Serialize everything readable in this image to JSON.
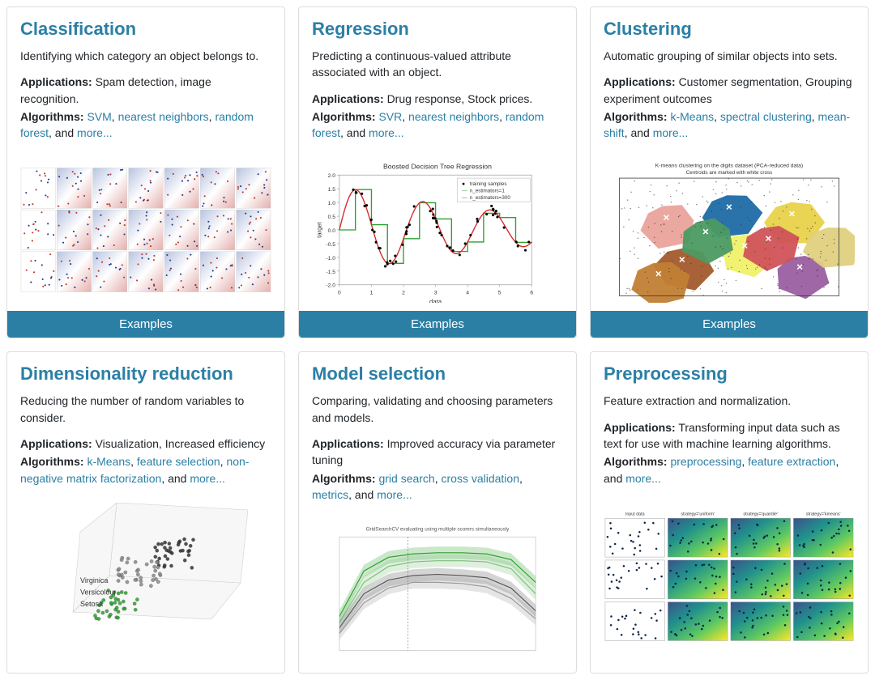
{
  "colors": {
    "link": "#2b7fa5",
    "heading": "#2b7fa5",
    "button_bg": "#2b7fa5",
    "button_text": "#ffffff",
    "card_border": "#dddddd",
    "body_text": "#212529"
  },
  "button_label": "Examples",
  "cards": [
    {
      "id": "classification",
      "title": "Classification",
      "description": "Identifying which category an object belongs to.",
      "applications_label": "Applications:",
      "applications": "Spam detection, image recognition.",
      "algorithms_label": "Algorithms:",
      "algorithms": [
        {
          "text": "SVM",
          "link": true
        },
        {
          "text": "nearest neighbors",
          "link": true
        },
        {
          "text": "random forest",
          "link": true
        }
      ],
      "more_label": "more...",
      "has_examples_button": true,
      "thumb": {
        "type": "classifier-comparison-grid",
        "rows": 3,
        "cols": 7,
        "bg_gradient": [
          "#b8c3e0",
          "#ffffff",
          "#e4b0ae"
        ],
        "point_colors": [
          "#2b3a8f",
          "#c0392b"
        ]
      }
    },
    {
      "id": "regression",
      "title": "Regression",
      "description": "Predicting a continuous-valued attribute associated with an object.",
      "applications_label": "Applications:",
      "applications": "Drug response, Stock prices.",
      "algorithms_label": "Algorithms:",
      "algorithms": [
        {
          "text": "SVR",
          "link": true
        },
        {
          "text": "nearest neighbors",
          "link": true
        },
        {
          "text": "random forest",
          "link": true
        }
      ],
      "more_label": "more...",
      "has_examples_button": true,
      "thumb": {
        "type": "line",
        "title": "Boosted Decision Tree Regression",
        "xlabel": "data",
        "ylabel": "target",
        "xlim": [
          0,
          6
        ],
        "ylim": [
          -2.0,
          2.0
        ],
        "ytick_step": 0.5,
        "legend": [
          "training samples",
          "n_estimators=1",
          "n_estimators=300"
        ],
        "legend_colors": [
          "#000000",
          "#2ca02c",
          "#d62728"
        ],
        "scatter_color": "#000000",
        "line1_color": "#2ca02c",
        "line2_color": "#d62728",
        "background_color": "#ffffff",
        "grid_color": "#cccccc"
      }
    },
    {
      "id": "clustering",
      "title": "Clustering",
      "description": "Automatic grouping of similar objects into sets.",
      "applications_label": "Applications:",
      "applications": "Customer segmentation, Grouping experiment outcomes",
      "algorithms_label": "Algorithms:",
      "algorithms": [
        {
          "text": "k-Means",
          "link": true
        },
        {
          "text": "spectral clustering",
          "link": true
        },
        {
          "text": "mean-shift",
          "link": true
        }
      ],
      "more_label": "more...",
      "has_examples_button": true,
      "thumb": {
        "type": "voronoi",
        "title": "K-means clustering on the digits dataset (PCA-reduced data)",
        "subtitle": "Centroids are marked with white cross",
        "region_colors": [
          "#e9a39c",
          "#1f6aa5",
          "#e8d24a",
          "#a25b2c",
          "#f0f06a",
          "#9a5fa0",
          "#4b9a62",
          "#d0535a",
          "#c17f34",
          "#e0d080"
        ],
        "centroid_mark": "✕",
        "centroid_color": "#ffffff",
        "point_color": "#333333"
      }
    },
    {
      "id": "dimred",
      "title": "Dimensionality reduction",
      "description": "Reducing the number of random variables to consider.",
      "applications_label": "Applications:",
      "applications": "Visualization, Increased efficiency",
      "algorithms_label": "Algorithms:",
      "algorithms": [
        {
          "text": "k-Means",
          "link": true
        },
        {
          "text": "feature selection",
          "link": true
        },
        {
          "text": "non-negative matrix factorization",
          "link": true
        }
      ],
      "more_label": "more...",
      "has_examples_button": false,
      "thumb": {
        "type": "scatter-3d",
        "labels": [
          "Virginica",
          "Versicolour",
          "Setosa"
        ],
        "label_color": "#333333",
        "cluster_colors": [
          "#333333",
          "#888888",
          "#2ca02c"
        ],
        "background_color": "#f7f7f7",
        "grid_color": "#cccccc"
      }
    },
    {
      "id": "model_selection",
      "title": "Model selection",
      "description": "Comparing, validating and choosing parameters and models.",
      "applications_label": "Applications:",
      "applications": "Improved accuracy via parameter tuning",
      "algorithms_label": "Algorithms:",
      "algorithms": [
        {
          "text": "grid search",
          "link": true
        },
        {
          "text": "cross validation",
          "link": true
        },
        {
          "text": "metrics",
          "link": true
        }
      ],
      "more_label": "more...",
      "has_examples_button": false,
      "thumb": {
        "type": "validation-curves",
        "title": "GridSearchCV evaluating using multiple scorers simultaneously",
        "line_colors": [
          "#2ca02c",
          "#7bbf7b",
          "#555555",
          "#999999"
        ],
        "fill_alpha": 0.25,
        "background_color": "#ffffff",
        "grid_color": "#dddddd"
      }
    },
    {
      "id": "preprocessing",
      "title": "Preprocessing",
      "description": "Feature extraction and normalization.",
      "applications_label": "Applications:",
      "applications": "Transforming input data such as text for use with machine learning algorithms.",
      "algorithms_label": "Algorithms:",
      "algorithms": [
        {
          "text": "preprocessing",
          "link": true
        },
        {
          "text": "feature extraction",
          "link": true
        }
      ],
      "more_label": "more...",
      "has_examples_button": false,
      "thumb": {
        "type": "discretization-grid",
        "rows": 3,
        "cols": 4,
        "col_titles": [
          "Input data",
          "strategy='uniform'",
          "strategy='quantile'",
          "strategy='kmeans'"
        ],
        "gradient_palette": [
          "#3b528b",
          "#21918c",
          "#5ec962",
          "#fde725"
        ],
        "point_color": "#0b2545"
      }
    }
  ]
}
